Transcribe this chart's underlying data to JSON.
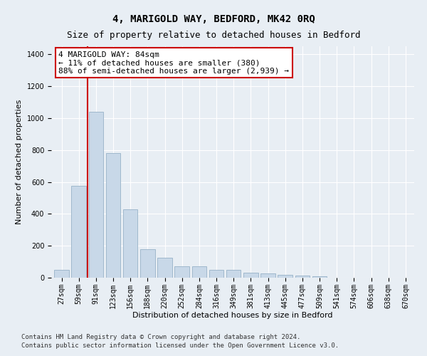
{
  "title": "4, MARIGOLD WAY, BEDFORD, MK42 0RQ",
  "subtitle": "Size of property relative to detached houses in Bedford",
  "xlabel": "Distribution of detached houses by size in Bedford",
  "ylabel": "Number of detached properties",
  "categories": [
    "27sqm",
    "59sqm",
    "91sqm",
    "123sqm",
    "156sqm",
    "188sqm",
    "220sqm",
    "252sqm",
    "284sqm",
    "316sqm",
    "349sqm",
    "381sqm",
    "413sqm",
    "445sqm",
    "477sqm",
    "509sqm",
    "541sqm",
    "574sqm",
    "606sqm",
    "638sqm",
    "670sqm"
  ],
  "values": [
    50,
    575,
    1040,
    780,
    430,
    180,
    125,
    70,
    70,
    50,
    50,
    30,
    25,
    20,
    12,
    8,
    0,
    0,
    0,
    0,
    0
  ],
  "bar_color": "#c8d8e8",
  "bar_edge_color": "#a0b8cc",
  "vline_x": 1.5,
  "vline_color": "#cc0000",
  "annotation_text": "4 MARIGOLD WAY: 84sqm\n← 11% of detached houses are smaller (380)\n88% of semi-detached houses are larger (2,939) →",
  "annotation_box_color": "#ffffff",
  "annotation_box_edge": "#cc0000",
  "ylim": [
    0,
    1450
  ],
  "yticks": [
    0,
    200,
    400,
    600,
    800,
    1000,
    1200,
    1400
  ],
  "background_color": "#e8eef4",
  "footer_line1": "Contains HM Land Registry data © Crown copyright and database right 2024.",
  "footer_line2": "Contains public sector information licensed under the Open Government Licence v3.0.",
  "title_fontsize": 10,
  "subtitle_fontsize": 9,
  "axis_label_fontsize": 8,
  "tick_fontsize": 7,
  "annotation_fontsize": 8,
  "footer_fontsize": 6.5
}
